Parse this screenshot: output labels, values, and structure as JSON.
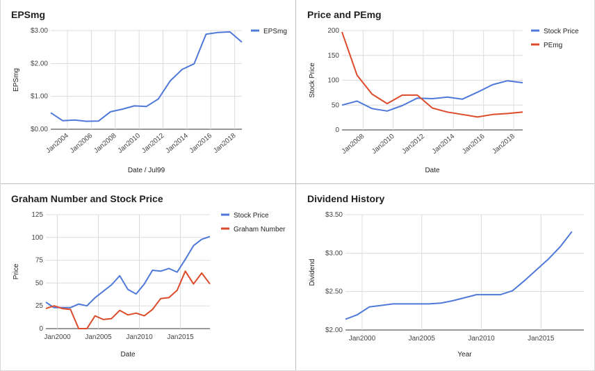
{
  "colors": {
    "blue": "#4e79d9",
    "red": "#dc4a2a",
    "grid": "#dcdcdc",
    "axis": "#333333"
  },
  "chart_data": [
    {
      "type": "line",
      "title": "EPSmg",
      "xlabel": "Date / Jul99",
      "ylabel": "EPSmg",
      "xticks": [
        "Jan2004",
        "Jan2006",
        "Jan2008",
        "Jan2010",
        "Jan2012",
        "Jan2014",
        "Jan2016",
        "Jan2018"
      ],
      "yticks": [
        "$0.00",
        "$1.00",
        "$2.00",
        "$3.00"
      ],
      "xlim": [
        2002.6,
        2018.6
      ],
      "ylim": [
        0,
        3
      ],
      "legend_position": "right",
      "grid": true,
      "series": [
        {
          "name": "EPSmg",
          "color": "#4e79d9",
          "points": [
            [
              2002.6,
              0.5
            ],
            [
              2003.6,
              0.26
            ],
            [
              2004.6,
              0.28
            ],
            [
              2005.6,
              0.24
            ],
            [
              2006.6,
              0.25
            ],
            [
              2007.6,
              0.53
            ],
            [
              2008.6,
              0.61
            ],
            [
              2009.6,
              0.71
            ],
            [
              2010.6,
              0.69
            ],
            [
              2011.6,
              0.92
            ],
            [
              2012.6,
              1.47
            ],
            [
              2013.6,
              1.82
            ],
            [
              2014.6,
              1.99
            ],
            [
              2015.6,
              2.89
            ],
            [
              2016.6,
              2.94
            ],
            [
              2017.6,
              2.96
            ],
            [
              2018.6,
              2.65
            ]
          ]
        }
      ]
    },
    {
      "type": "line",
      "title": "Price and PEmg",
      "xlabel": "Date",
      "ylabel": "Stock Price",
      "xticks": [
        "Jan2008",
        "Jan2010",
        "Jan2012",
        "Jan2014",
        "Jan2016",
        "Jan2018"
      ],
      "yticks": [
        "0",
        "50",
        "100",
        "150",
        "200"
      ],
      "xlim": [
        2006.6,
        2018.6
      ],
      "ylim": [
        0,
        200
      ],
      "legend_position": "right",
      "grid": true,
      "series": [
        {
          "name": "Stock Price",
          "color": "#4e79d9",
          "points": [
            [
              2006.6,
              50
            ],
            [
              2007.6,
              58
            ],
            [
              2008.6,
              43
            ],
            [
              2009.6,
              38
            ],
            [
              2010.6,
              49
            ],
            [
              2011.6,
              64
            ],
            [
              2012.6,
              63
            ],
            [
              2013.6,
              66
            ],
            [
              2014.6,
              62
            ],
            [
              2015.6,
              76
            ],
            [
              2016.6,
              91
            ],
            [
              2017.6,
              99
            ],
            [
              2018.6,
              95
            ]
          ]
        },
        {
          "name": "PEmg",
          "color": "#dc4a2a",
          "points": [
            [
              2006.6,
              197
            ],
            [
              2007.6,
              110
            ],
            [
              2008.6,
              72
            ],
            [
              2009.6,
              53
            ],
            [
              2010.6,
              70
            ],
            [
              2011.6,
              70
            ],
            [
              2012.6,
              44
            ],
            [
              2013.6,
              36
            ],
            [
              2014.6,
              31
            ],
            [
              2015.6,
              26
            ],
            [
              2016.6,
              31
            ],
            [
              2017.6,
              33
            ],
            [
              2018.6,
              36
            ]
          ]
        }
      ]
    },
    {
      "type": "line",
      "title": "Graham Number and Stock Price",
      "xlabel": "Date",
      "ylabel": "Price",
      "xticks": [
        "Jan2000",
        "Jan2005",
        "Jan2010",
        "Jan2015"
      ],
      "yticks": [
        "0",
        "25",
        "50",
        "75",
        "100",
        "125"
      ],
      "xlim": [
        1998.6,
        2018.6
      ],
      "ylim": [
        0,
        125
      ],
      "legend_position": "right",
      "grid": true,
      "series": [
        {
          "name": "Stock Price",
          "color": "#4e79d9",
          "points": [
            [
              1998.6,
              29
            ],
            [
              1999.6,
              23
            ],
            [
              2000.6,
              23
            ],
            [
              2001.6,
              23
            ],
            [
              2002.6,
              27
            ],
            [
              2003.6,
              25
            ],
            [
              2004.6,
              34
            ],
            [
              2005.6,
              41
            ],
            [
              2006.6,
              48
            ],
            [
              2007.6,
              58
            ],
            [
              2008.6,
              43
            ],
            [
              2009.6,
              38
            ],
            [
              2010.6,
              49
            ],
            [
              2011.6,
              64
            ],
            [
              2012.6,
              63
            ],
            [
              2013.6,
              66
            ],
            [
              2014.6,
              62
            ],
            [
              2015.6,
              76
            ],
            [
              2016.6,
              91
            ],
            [
              2017.6,
              98
            ],
            [
              2018.6,
              101
            ]
          ]
        },
        {
          "name": "Graham Number",
          "color": "#dc4a2a",
          "points": [
            [
              1998.6,
              22
            ],
            [
              1999.6,
              25
            ],
            [
              2000.6,
              22
            ],
            [
              2001.6,
              21
            ],
            [
              2002.6,
              0
            ],
            [
              2003.6,
              0
            ],
            [
              2004.6,
              14
            ],
            [
              2005.6,
              10
            ],
            [
              2006.6,
              11
            ],
            [
              2007.6,
              20
            ],
            [
              2008.6,
              15
            ],
            [
              2009.6,
              17
            ],
            [
              2010.6,
              14
            ],
            [
              2011.6,
              21
            ],
            [
              2012.6,
              33
            ],
            [
              2013.6,
              34
            ],
            [
              2014.6,
              42
            ],
            [
              2015.6,
              63
            ],
            [
              2016.6,
              49
            ],
            [
              2017.6,
              61
            ],
            [
              2018.6,
              49
            ]
          ]
        }
      ]
    },
    {
      "type": "line",
      "title": "Dividend History",
      "xlabel": "Year",
      "ylabel": "Dividend",
      "xticks": [
        "Jan2000",
        "Jan2005",
        "Jan2010",
        "Jan2015"
      ],
      "yticks": [
        "$2.00",
        "$2.50",
        "$3.00",
        "$3.50"
      ],
      "xlim": [
        1998.6,
        2018.6
      ],
      "ylim": [
        2.0,
        3.5
      ],
      "grid": true,
      "series": [
        {
          "name": "",
          "color": "#4e79d9",
          "points": [
            [
              1998.6,
              2.14
            ],
            [
              1999.6,
              2.2
            ],
            [
              2000.6,
              2.3
            ],
            [
              2001.6,
              2.32
            ],
            [
              2002.6,
              2.34
            ],
            [
              2003.6,
              2.34
            ],
            [
              2004.6,
              2.34
            ],
            [
              2005.6,
              2.34
            ],
            [
              2006.6,
              2.35
            ],
            [
              2007.6,
              2.38
            ],
            [
              2008.6,
              2.42
            ],
            [
              2009.6,
              2.46
            ],
            [
              2010.6,
              2.46
            ],
            [
              2011.6,
              2.46
            ],
            [
              2012.6,
              2.51
            ],
            [
              2013.6,
              2.64
            ],
            [
              2014.6,
              2.78
            ],
            [
              2015.6,
              2.92
            ],
            [
              2016.6,
              3.08
            ],
            [
              2017.6,
              3.28
            ]
          ]
        }
      ]
    }
  ]
}
